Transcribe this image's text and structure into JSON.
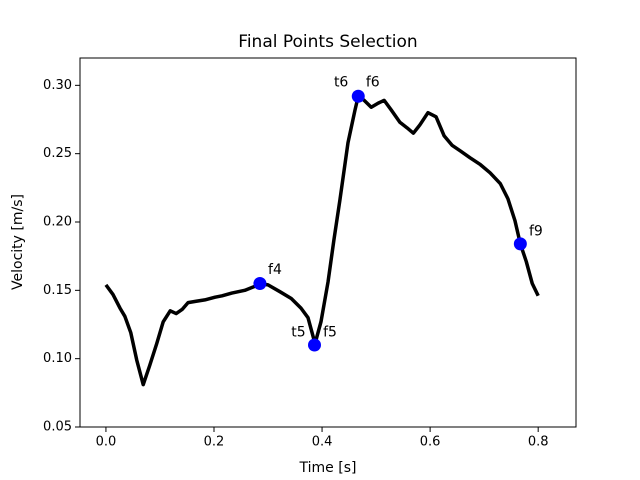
{
  "chart_data": {
    "type": "line",
    "title": "Final Points Selection",
    "xlabel": "Time [s]",
    "ylabel": "Velocity [m/s]",
    "xlim": [
      -0.048,
      0.87
    ],
    "ylim": [
      0.05,
      0.32
    ],
    "xticks": [
      {
        "value": 0,
        "label": "0.0"
      },
      0.2,
      0.4,
      0.6,
      0.8
    ],
    "yticks": [
      0.05,
      {
        "value": 0.1,
        "label": "0.10"
      },
      0.15,
      {
        "value": 0.2,
        "label": "0.20"
      },
      0.25,
      {
        "value": 0.3,
        "label": "0.30"
      }
    ],
    "line": {
      "color": "#000000",
      "x": [
        0,
        0.013,
        0.026,
        0.035,
        0.046,
        0.057,
        0.069,
        0.081,
        0.094,
        0.106,
        0.119,
        0.13,
        0.141,
        0.152,
        0.167,
        0.183,
        0.202,
        0.215,
        0.233,
        0.257,
        0.276,
        0.285,
        0.3,
        0.322,
        0.343,
        0.361,
        0.374,
        0.387,
        0.398,
        0.411,
        0.422,
        0.433,
        0.448,
        0.461,
        0.467,
        0.478,
        0.491,
        0.504,
        0.515,
        0.528,
        0.544,
        0.557,
        0.569,
        0.581,
        0.596,
        0.611,
        0.626,
        0.641,
        0.656,
        0.674,
        0.693,
        0.711,
        0.73,
        0.744,
        0.757,
        0.767,
        0.778,
        0.789,
        0.8
      ],
      "y": [
        0.154,
        0.147,
        0.137,
        0.131,
        0.119,
        0.099,
        0.081,
        0.095,
        0.111,
        0.127,
        0.135,
        0.133,
        0.136,
        0.141,
        0.142,
        0.143,
        0.145,
        0.146,
        0.148,
        0.15,
        0.153,
        0.155,
        0.154,
        0.149,
        0.144,
        0.137,
        0.13,
        0.111,
        0.127,
        0.156,
        0.187,
        0.216,
        0.258,
        0.282,
        0.292,
        0.289,
        0.284,
        0.287,
        0.289,
        0.282,
        0.273,
        0.269,
        0.265,
        0.271,
        0.28,
        0.277,
        0.263,
        0.256,
        0.252,
        0.247,
        0.242,
        0.236,
        0.228,
        0.217,
        0.201,
        0.184,
        0.171,
        0.155,
        0.146
      ]
    },
    "points": {
      "color": "#0000ff",
      "x": [
        0.285,
        0.386,
        0.467,
        0.767
      ],
      "y": [
        0.155,
        0.11,
        0.292,
        0.184
      ]
    },
    "annotations": [
      {
        "text": "f4",
        "x": 0.3,
        "y": 0.165
      },
      {
        "text": "t5",
        "x": 0.343,
        "y": 0.119
      },
      {
        "text": "f5",
        "x": 0.402,
        "y": 0.119
      },
      {
        "text": "t6",
        "x": 0.422,
        "y": 0.302
      },
      {
        "text": "f6",
        "x": 0.481,
        "y": 0.302
      },
      {
        "text": "f9",
        "x": 0.783,
        "y": 0.193
      }
    ]
  }
}
